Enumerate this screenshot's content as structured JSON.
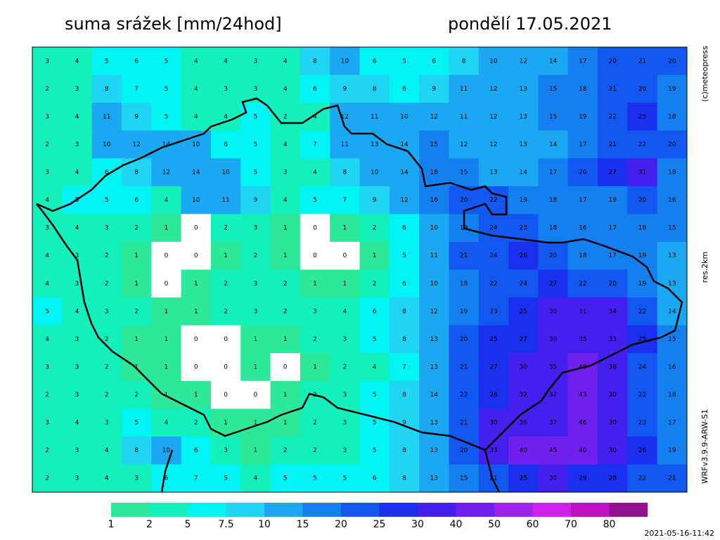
{
  "header": {
    "title": "suma srážek [mm/24hod]",
    "date": "pondělí 17.05.2021"
  },
  "side_labels": [
    "(c)meteopress",
    "res.2km",
    "WRFv3.9.9-ARW-S1"
  ],
  "timestamp": "2021-05-16-11:42",
  "colorbar": {
    "levels": [
      1,
      2,
      5,
      7.5,
      10,
      15,
      20,
      25,
      30,
      40,
      50,
      60,
      70,
      80
    ],
    "colors": [
      "#2ee89a",
      "#14f0bc",
      "#00f4f4",
      "#20d4f4",
      "#1aa8f2",
      "#1480f0",
      "#1258f0",
      "#1a30ee",
      "#4420ee",
      "#7020ee",
      "#a020ee",
      "#d020ee",
      "#c010c0",
      "#901090"
    ]
  },
  "map": {
    "grid": [
      [
        3,
        4,
        5,
        6,
        5,
        4,
        4,
        3,
        4,
        8,
        10,
        6,
        5,
        6,
        8,
        10,
        12,
        14,
        17,
        20,
        21,
        20
      ],
      [
        2,
        3,
        8,
        7,
        5,
        4,
        3,
        3,
        4,
        6,
        9,
        8,
        6,
        9,
        11,
        12,
        13,
        15,
        18,
        21,
        20,
        19
      ],
      [
        3,
        4,
        11,
        9,
        5,
        4,
        4,
        5,
        2,
        4,
        12,
        11,
        10,
        12,
        11,
        12,
        13,
        15,
        19,
        22,
        25,
        18
      ],
      [
        2,
        3,
        10,
        12,
        14,
        10,
        6,
        5,
        4,
        7,
        11,
        13,
        14,
        15,
        12,
        12,
        13,
        14,
        17,
        21,
        22,
        20
      ],
      [
        3,
        4,
        6,
        8,
        12,
        14,
        10,
        5,
        3,
        4,
        8,
        10,
        14,
        18,
        15,
        13,
        14,
        17,
        20,
        27,
        31,
        18
      ],
      [
        4,
        5,
        5,
        6,
        4,
        10,
        11,
        9,
        4,
        5,
        7,
        9,
        12,
        16,
        20,
        22,
        19,
        18,
        17,
        19,
        20,
        16
      ],
      [
        3,
        4,
        3,
        2,
        1,
        0,
        2,
        3,
        1,
        0,
        1,
        2,
        6,
        10,
        19,
        24,
        23,
        18,
        16,
        17,
        18,
        15
      ],
      [
        4,
        3,
        2,
        1,
        0,
        0,
        1,
        2,
        1,
        0,
        0,
        1,
        5,
        11,
        21,
        24,
        26,
        20,
        18,
        17,
        19,
        13
      ],
      [
        4,
        3,
        2,
        1,
        0,
        1,
        2,
        3,
        2,
        1,
        1,
        2,
        6,
        10,
        18,
        22,
        24,
        27,
        22,
        20,
        19,
        13
      ],
      [
        5,
        4,
        3,
        2,
        1,
        1,
        2,
        3,
        2,
        3,
        4,
        6,
        8,
        12,
        19,
        23,
        25,
        30,
        31,
        34,
        22,
        14
      ],
      [
        4,
        3,
        2,
        1,
        1,
        0,
        0,
        1,
        1,
        2,
        3,
        5,
        8,
        13,
        20,
        25,
        27,
        30,
        35,
        33,
        25,
        15
      ],
      [
        3,
        3,
        2,
        1,
        1,
        0,
        0,
        1,
        0,
        1,
        2,
        4,
        7,
        13,
        21,
        27,
        30,
        35,
        40,
        38,
        24,
        16
      ],
      [
        2,
        3,
        2,
        2,
        1,
        1,
        0,
        0,
        1,
        2,
        3,
        5,
        8,
        14,
        22,
        28,
        32,
        37,
        43,
        30,
        22,
        18
      ],
      [
        3,
        4,
        3,
        5,
        4,
        2,
        1,
        1,
        1,
        2,
        3,
        5,
        9,
        13,
        21,
        30,
        36,
        37,
        46,
        30,
        23,
        17
      ],
      [
        2,
        3,
        4,
        8,
        10,
        6,
        3,
        1,
        2,
        2,
        3,
        5,
        8,
        13,
        20,
        33,
        40,
        45,
        40,
        30,
        26,
        19
      ],
      [
        2,
        3,
        4,
        3,
        6,
        7,
        5,
        4,
        5,
        5,
        5,
        6,
        8,
        13,
        15,
        21,
        25,
        30,
        29,
        28,
        22,
        21
      ]
    ]
  }
}
